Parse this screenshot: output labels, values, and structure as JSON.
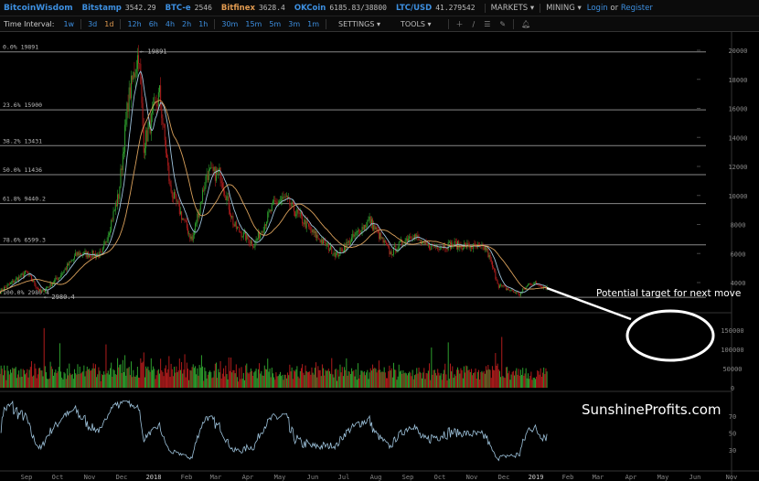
{
  "header": {
    "brand": "BitcoinWisdom",
    "tickers": [
      {
        "name": "Bitstamp",
        "price": "3542.29"
      },
      {
        "name": "BTC-e",
        "price": "2546"
      },
      {
        "name": "Bitfinex",
        "price": "3628.4"
      },
      {
        "name": "OKCoin",
        "price": "6185.83/38800"
      },
      {
        "name": "LTC/USD",
        "price": "41.279542"
      }
    ],
    "markets": "MARKETS ▾",
    "mining": "MINING ▾",
    "login": "Login",
    "or": "or",
    "register": "Register"
  },
  "toolbar": {
    "label": "Time Interval:",
    "intervals": [
      "1w",
      "3d",
      "1d",
      "12h",
      "6h",
      "4h",
      "2h",
      "1h",
      "30m",
      "15m",
      "5m",
      "3m",
      "1m"
    ],
    "active": "1d",
    "settings": "SETTINGS ▾",
    "tools": "TOOLS ▾",
    "icons": [
      "crosshair-icon",
      "line-icon",
      "fib-icon",
      "pen-icon",
      "bell-icon"
    ]
  },
  "colors": {
    "up": "#2e9e2e",
    "down": "#b01c1c",
    "ma_fast": "#9ec3dc",
    "ma_slow": "#d9a05b",
    "rsi": "#9ec3dc",
    "grid": "#888888"
  },
  "chart_data": {
    "type": "candlestick",
    "price_axis": {
      "ticks": [
        4000,
        6000,
        8000,
        10000,
        12000,
        14000,
        16000,
        18000,
        20000
      ]
    },
    "volume_axis": {
      "ticks": [
        0,
        50000,
        100000,
        150000
      ]
    },
    "rsi_axis": {
      "ticks": [
        30,
        50,
        70
      ]
    },
    "x_ticks": [
      "Sep",
      "Oct",
      "Nov",
      "Dec",
      "2018",
      "Feb",
      "Mar",
      "Apr",
      "May",
      "Jun",
      "Jul",
      "Aug",
      "Sep",
      "Oct",
      "Nov",
      "Dec",
      "2019",
      "Feb",
      "Mar",
      "Apr",
      "May",
      "Jun",
      "Nov"
    ],
    "price_path": [
      [
        "2017-08-07",
        3400
      ],
      [
        "2017-09-01",
        4700
      ],
      [
        "2017-09-15",
        3300
      ],
      [
        "2017-10-01",
        4300
      ],
      [
        "2017-10-20",
        6000
      ],
      [
        "2017-11-12",
        5900
      ],
      [
        "2017-11-28",
        10000
      ],
      [
        "2017-12-07",
        16500
      ],
      [
        "2017-12-17",
        19891
      ],
      [
        "2017-12-22",
        13500
      ],
      [
        "2018-01-06",
        17000
      ],
      [
        "2018-01-16",
        10500
      ],
      [
        "2018-02-06",
        6900
      ],
      [
        "2018-02-20",
        11500
      ],
      [
        "2018-03-05",
        11500
      ],
      [
        "2018-03-18",
        7900
      ],
      [
        "2018-04-06",
        6600
      ],
      [
        "2018-04-25",
        9400
      ],
      [
        "2018-05-05",
        9800
      ],
      [
        "2018-05-31",
        7500
      ],
      [
        "2018-06-24",
        5900
      ],
      [
        "2018-07-25",
        8300
      ],
      [
        "2018-08-14",
        6000
      ],
      [
        "2018-09-04",
        7400
      ],
      [
        "2018-09-15",
        6500
      ],
      [
        "2018-10-15",
        6600
      ],
      [
        "2018-11-13",
        6350
      ],
      [
        "2018-11-25",
        3800
      ],
      [
        "2018-12-15",
        3200
      ],
      [
        "2018-12-25",
        4000
      ],
      [
        "2019-01-10",
        3700
      ]
    ],
    "fib_levels": [
      {
        "label": "0.0% 19891",
        "value": 19891
      },
      {
        "label": "23.6% 15900",
        "value": 15900
      },
      {
        "label": "38.2% 13431",
        "value": 13431
      },
      {
        "label": "50.0% 11436",
        "value": 11436
      },
      {
        "label": "61.8% 9440.2",
        "value": 9440.2
      },
      {
        "label": "78.6% 6599.3",
        "value": 6599.3
      },
      {
        "label": "100.0% 2980.4",
        "value": 2980.4
      }
    ],
    "high_marker": "19891",
    "low_marker": "2980.4"
  },
  "annotation": {
    "text": "Potential target for next move"
  },
  "watermark": "SunshineProfits.com"
}
